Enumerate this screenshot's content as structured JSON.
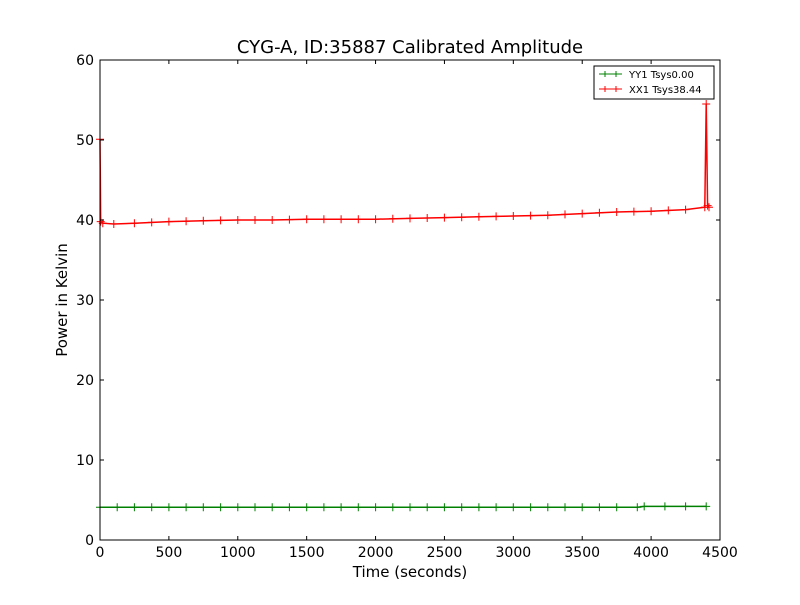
{
  "chart_data": {
    "type": "line",
    "title": "CYG-A, ID:35887 Calibrated Amplitude",
    "xlabel": "Time (seconds)",
    "ylabel": "Power in Kelvin",
    "xlim": [
      0,
      4500
    ],
    "ylim": [
      0,
      60
    ],
    "xticks": [
      0,
      500,
      1000,
      1500,
      2000,
      2500,
      3000,
      3500,
      4000,
      4500
    ],
    "yticks": [
      0,
      10,
      20,
      30,
      40,
      50,
      60
    ],
    "xtick_labels": [
      "0",
      "500",
      "1000",
      "1500",
      "2000",
      "2500",
      "3000",
      "3500",
      "4000",
      "4500"
    ],
    "ytick_labels": [
      "0",
      "10",
      "20",
      "30",
      "40",
      "50",
      "60"
    ],
    "grid": false,
    "legend_position": "top-right",
    "marker": "+",
    "series": [
      {
        "name": "YY1 Tsys0.00",
        "color": "#008000",
        "x": [
          0,
          250,
          500,
          750,
          1000,
          1250,
          1500,
          1750,
          2000,
          2250,
          2500,
          2750,
          3000,
          3250,
          3500,
          3750,
          3900,
          3950,
          4100,
          4250,
          4400
        ],
        "y": [
          4.1,
          4.1,
          4.1,
          4.1,
          4.1,
          4.1,
          4.1,
          4.1,
          4.1,
          4.1,
          4.1,
          4.1,
          4.1,
          4.1,
          4.1,
          4.1,
          4.1,
          4.2,
          4.2,
          4.2,
          4.2
        ]
      },
      {
        "name": "XX1 Tsys38.44",
        "color": "#ff0000",
        "x": [
          0,
          5,
          20,
          100,
          250,
          500,
          750,
          1000,
          1250,
          1500,
          1750,
          2000,
          2250,
          2500,
          2750,
          3000,
          3250,
          3500,
          3750,
          4000,
          4250,
          4390,
          4400,
          4410,
          4420
        ],
        "y": [
          50.1,
          39.8,
          39.6,
          39.5,
          39.6,
          39.8,
          39.9,
          40.0,
          40.0,
          40.1,
          40.1,
          40.1,
          40.2,
          40.3,
          40.4,
          40.5,
          40.6,
          40.8,
          41.0,
          41.1,
          41.3,
          41.6,
          54.5,
          41.8,
          41.6
        ]
      }
    ]
  }
}
